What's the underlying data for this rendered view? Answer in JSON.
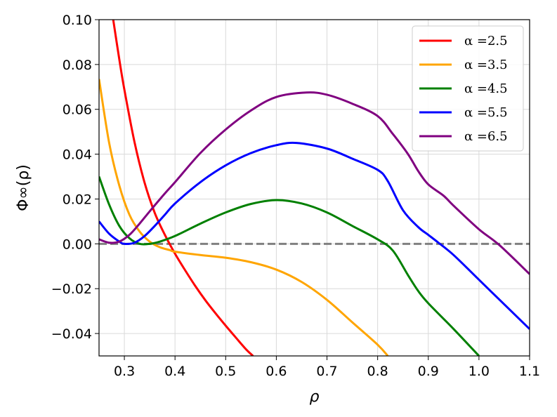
{
  "chart_data": {
    "type": "line",
    "title": "",
    "xlabel": "ρ",
    "ylabel": "Φ∞(ρ)",
    "xlim": [
      0.25,
      1.1
    ],
    "ylim": [
      -0.05,
      0.1
    ],
    "xticks": [
      "0.3",
      "0.4",
      "0.5",
      "0.6",
      "0.7",
      "0.8",
      "0.9",
      "1.0",
      "1.1"
    ],
    "yticks": [
      "−0.04",
      "−0.02",
      "0.00",
      "0.02",
      "0.04",
      "0.06",
      "0.08",
      "0.10"
    ],
    "grid": true,
    "legend_position": "top-right",
    "reference_line": {
      "y": 0.0,
      "color": "#808080",
      "style": "dashed"
    },
    "series": [
      {
        "name": "α =2.5",
        "color": "#ff0000",
        "x": [
          0.278,
          0.29,
          0.3,
          0.32,
          0.34,
          0.36,
          0.38,
          0.4,
          0.42,
          0.44,
          0.46,
          0.48,
          0.5,
          0.52,
          0.54,
          0.554
        ],
        "y": [
          0.1,
          0.0823,
          0.0688,
          0.0454,
          0.0272,
          0.0138,
          0.004,
          -0.0044,
          -0.0118,
          -0.0188,
          -0.0252,
          -0.031,
          -0.0365,
          -0.0418,
          -0.047,
          -0.05
        ]
      },
      {
        "name": "α =3.5",
        "color": "#ffa500",
        "x": [
          0.25,
          0.27,
          0.29,
          0.31,
          0.33,
          0.35,
          0.37,
          0.39,
          0.4,
          0.45,
          0.5,
          0.55,
          0.6,
          0.65,
          0.7,
          0.75,
          0.8,
          0.82
        ],
        "y": [
          0.0735,
          0.045,
          0.026,
          0.013,
          0.0055,
          0.001,
          -0.0015,
          -0.0028,
          -0.0035,
          -0.005,
          -0.0062,
          -0.0082,
          -0.0115,
          -0.017,
          -0.025,
          -0.035,
          -0.045,
          -0.05
        ]
      },
      {
        "name": "α =4.5",
        "color": "#008000",
        "x": [
          0.25,
          0.27,
          0.29,
          0.31,
          0.33,
          0.35,
          0.37,
          0.4,
          0.45,
          0.5,
          0.55,
          0.6,
          0.65,
          0.7,
          0.75,
          0.8,
          0.83,
          0.86,
          0.88,
          0.9,
          0.95,
          1.0
        ],
        "y": [
          0.03,
          0.0175,
          0.008,
          0.0025,
          0.0,
          0.0,
          0.001,
          0.0035,
          0.009,
          0.014,
          0.0178,
          0.0195,
          0.018,
          0.014,
          0.008,
          0.002,
          -0.003,
          -0.014,
          -0.021,
          -0.0265,
          -0.038,
          -0.05
        ]
      },
      {
        "name": "α =5.5",
        "color": "#0000ff",
        "x": [
          0.25,
          0.27,
          0.29,
          0.3,
          0.32,
          0.34,
          0.36,
          0.38,
          0.4,
          0.45,
          0.5,
          0.55,
          0.6,
          0.64,
          0.7,
          0.75,
          0.8,
          0.82,
          0.85,
          0.88,
          0.9,
          0.92,
          0.95,
          1.0,
          1.05,
          1.1
        ],
        "y": [
          0.01,
          0.0045,
          0.001,
          0.0,
          0.0005,
          0.0035,
          0.008,
          0.013,
          0.018,
          0.0275,
          0.035,
          0.0405,
          0.044,
          0.045,
          0.0425,
          0.038,
          0.033,
          0.028,
          0.015,
          0.0075,
          0.004,
          0.0005,
          -0.005,
          -0.016,
          -0.027,
          -0.038
        ]
      },
      {
        "name": "α =6.5",
        "color": "#800080",
        "x": [
          0.25,
          0.27,
          0.29,
          0.31,
          0.33,
          0.35,
          0.38,
          0.4,
          0.45,
          0.5,
          0.55,
          0.6,
          0.66,
          0.7,
          0.75,
          0.8,
          0.83,
          0.86,
          0.88,
          0.9,
          0.93,
          0.95,
          1.0,
          1.04,
          1.1
        ],
        "y": [
          0.002,
          0.0005,
          0.001,
          0.004,
          0.009,
          0.0145,
          0.0225,
          0.0275,
          0.0405,
          0.051,
          0.0595,
          0.0655,
          0.0675,
          0.0665,
          0.0625,
          0.057,
          0.049,
          0.04,
          0.0325,
          0.0265,
          0.0215,
          0.017,
          0.0065,
          -0.0005,
          -0.0135
        ]
      }
    ]
  }
}
